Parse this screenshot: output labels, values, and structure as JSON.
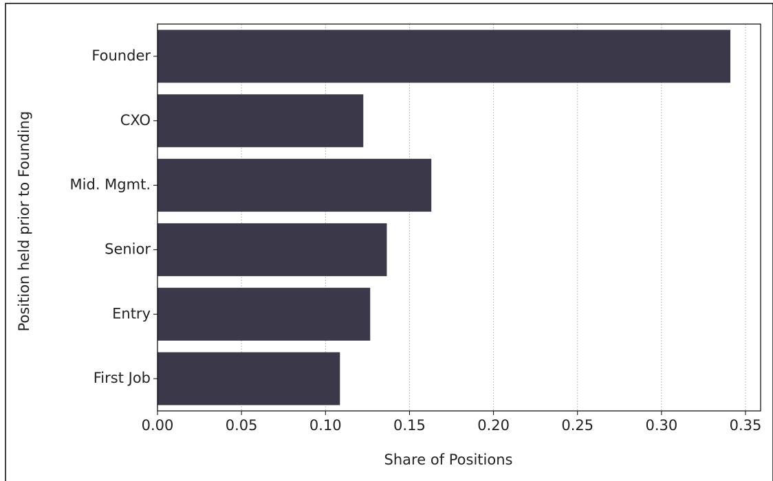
{
  "chart_data": {
    "type": "barh",
    "xlabel": "Share of Positions",
    "ylabel": "Position held prior to Founding",
    "categories": [
      "Founder",
      "CXO",
      "Mid. Mgmt.",
      "Senior",
      "Entry",
      "First Job"
    ],
    "values": [
      0.341,
      0.1225,
      0.163,
      0.1365,
      0.1266,
      0.1086
    ],
    "color": "#3b3849",
    "xlim": [
      0,
      0.359
    ],
    "xticks": [
      {
        "value": 0,
        "label": "0.00"
      },
      {
        "value": 0.05,
        "label": "0.05"
      },
      {
        "value": 0.1,
        "label": "0.10"
      },
      {
        "value": 0.15,
        "label": "0.15"
      },
      {
        "value": 0.2,
        "label": "0.20"
      },
      {
        "value": 0.25,
        "label": "0.25"
      },
      {
        "value": 0.3,
        "label": "0.30"
      },
      {
        "value": 0.35,
        "label": "0.35"
      }
    ],
    "grid": true
  }
}
